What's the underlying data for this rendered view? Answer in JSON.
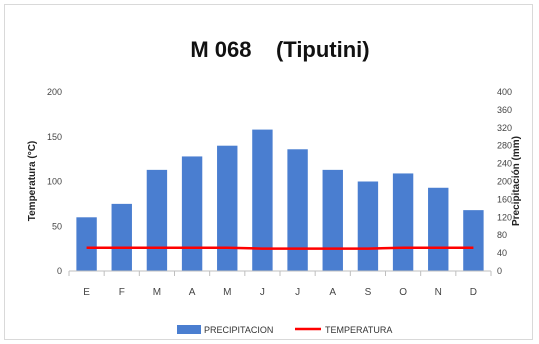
{
  "chart_data": {
    "type": "bar",
    "title": "M 068    (Tiputini)",
    "categories": [
      "E",
      "F",
      "M",
      "A",
      "M",
      "J",
      "J",
      "A",
      "S",
      "O",
      "N",
      "D"
    ],
    "ylabel": "Temperatura (°C)",
    "y2label": "Precipitación (mm)",
    "ylim": [
      0,
      200
    ],
    "yticks": [
      0,
      50,
      100,
      150,
      200
    ],
    "y2lim": [
      0,
      400
    ],
    "y2ticks": [
      0,
      40,
      80,
      120,
      160,
      200,
      240,
      280,
      320,
      360,
      400
    ],
    "grid": false,
    "legend_position": "bottom",
    "series": [
      {
        "name": "PRECIPITACION",
        "type": "bar",
        "axis": "right",
        "color": "#4a7ed0",
        "values": [
          120,
          150,
          226,
          256,
          280,
          316,
          272,
          226,
          200,
          218,
          186,
          136
        ]
      },
      {
        "name": "TEMPERATURA",
        "type": "line",
        "axis": "left",
        "color": "#ff0000",
        "values": [
          26,
          26,
          26,
          26,
          26,
          25,
          25,
          25,
          25,
          26,
          26,
          26
        ]
      }
    ]
  }
}
